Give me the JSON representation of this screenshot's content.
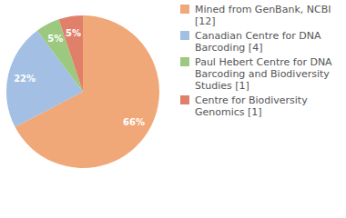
{
  "chart_data": {
    "type": "pie",
    "categories": [
      "Mined from GenBank, NCBI [12]",
      "Canadian Centre for DNA Barcoding [4]",
      "Paul Hebert Centre for DNA Barcoding and Biodiversity Studies [1]",
      "Centre for Biodiversity Genomics [1]"
    ],
    "values": [
      66,
      22,
      5,
      5
    ],
    "value_labels": [
      "66%",
      "22%",
      "5%",
      "5%"
    ],
    "colors": [
      "#f0a878",
      "#a3bfe3",
      "#9cc97f",
      "#e0806a"
    ],
    "data_labels": true,
    "legend": "right"
  }
}
